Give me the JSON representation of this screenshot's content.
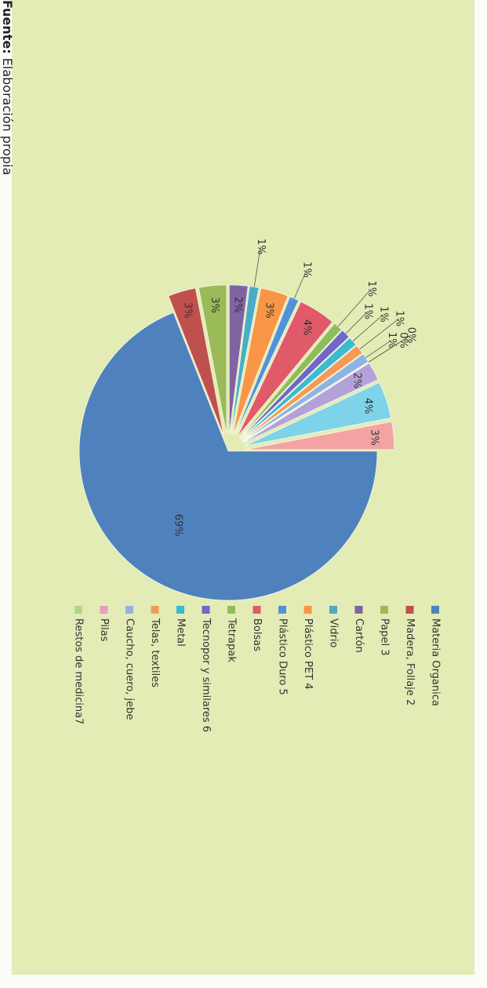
{
  "chart_data": {
    "type": "pie",
    "categories": [
      "Materia Organica",
      "Madera, Follaje 2",
      "Papel 3",
      "Cartón",
      "Vidrio",
      "Plástico PET 4",
      "Plástico Duro 5",
      "Bolsas",
      "Tetrapak",
      "Tecnopor y similares 6",
      "Metal",
      "Telas, textiles",
      "Caucho, cuero, jebe",
      "Pilas",
      "Restos de medicina7",
      null,
      null,
      null
    ],
    "values": [
      69,
      3,
      3,
      2,
      1,
      3,
      1,
      4,
      1,
      1,
      1,
      1,
      1,
      0,
      0,
      2,
      4,
      3
    ],
    "value_labels": [
      "69%",
      "3%",
      "3%",
      "2%",
      "1%",
      "3%",
      "1%",
      "4%",
      "1%",
      "1%",
      "1%",
      "1%",
      "1%",
      "0%",
      "0%",
      "2%",
      "4%",
      "3%"
    ],
    "colors": [
      "#4f81bd",
      "#c0504d",
      "#9bbb59",
      "#8064a2",
      "#4bacc6",
      "#f79646",
      "#4f93d8",
      "#e05a6a",
      "#8fbd5a",
      "#7067c8",
      "#3cbad0",
      "#f59a56",
      "#8fb4e3",
      "#e99bc0",
      "#b5d58f",
      "#b3a2d8",
      "#7fd3e8",
      "#f4a3a3"
    ],
    "legend": "right"
  },
  "source": {
    "label": "Fuente:",
    "text": "Elaboración propia"
  }
}
